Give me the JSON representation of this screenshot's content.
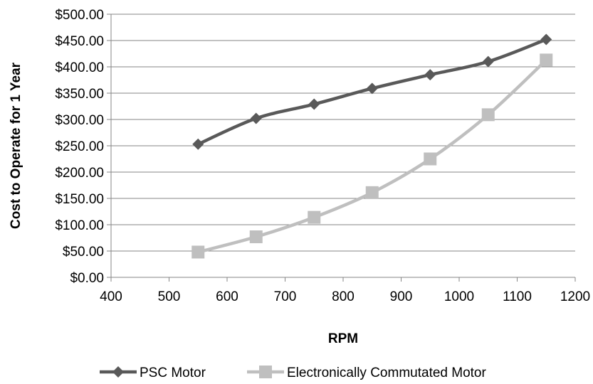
{
  "chart_data": {
    "type": "line",
    "title": "",
    "xlabel": "RPM",
    "ylabel": "Cost to Operate for 1 Year",
    "xlim": [
      400,
      1200
    ],
    "ylim": [
      0,
      500
    ],
    "x_ticks": [
      400,
      500,
      600,
      700,
      800,
      900,
      1000,
      1100,
      1200
    ],
    "x_tick_labels": [
      "400",
      "500",
      "600",
      "700",
      "800",
      "900",
      "1000",
      "1100",
      "1200"
    ],
    "y_ticks": [
      0,
      50,
      100,
      150,
      200,
      250,
      300,
      350,
      400,
      450,
      500
    ],
    "y_tick_labels": [
      "$0.00",
      "$50.00",
      "$100.00",
      "$150.00",
      "$200.00",
      "$250.00",
      "$300.00",
      "$350.00",
      "$400.00",
      "$450.00",
      "$500.00"
    ],
    "grid": "horizontal",
    "legend_position": "bottom",
    "x": [
      550,
      650,
      750,
      850,
      950,
      1050,
      1150
    ],
    "series": [
      {
        "name": "PSC Motor",
        "marker": "diamond",
        "color": "#595959",
        "values": [
          253,
          302,
          329,
          359,
          385,
          410,
          452
        ]
      },
      {
        "name": "Electronically Commutated Motor",
        "marker": "square",
        "color": "#bfbfbf",
        "values": [
          48,
          77,
          114,
          161,
          225,
          309,
          413
        ]
      }
    ]
  }
}
